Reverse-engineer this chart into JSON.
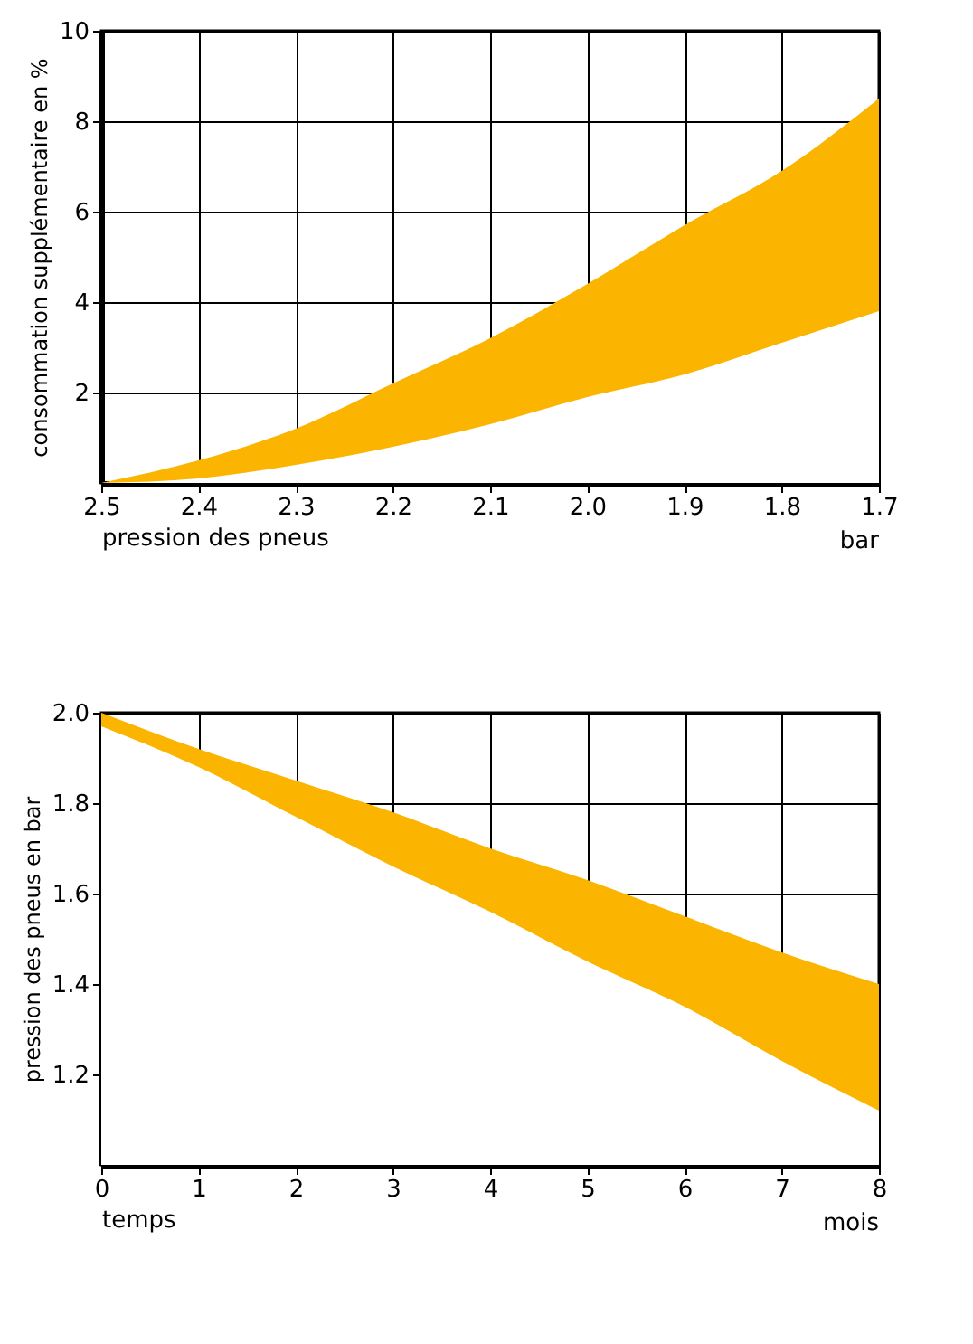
{
  "chart_data": [
    {
      "type": "area",
      "xlabel": "pression des pneus",
      "ylabel": "consommation supplémentaire en %",
      "annotations": [
        "bar"
      ],
      "x": [
        2.5,
        2.4,
        2.3,
        2.2,
        2.1,
        2.0,
        1.9,
        1.8,
        1.7
      ],
      "series": [
        {
          "color": "#fbb400",
          "values": [
            0,
            0.5,
            1.2,
            2.2,
            3.2,
            4.4,
            5.7,
            6.9,
            8.5
          ]
        },
        {
          "color": "#ffffff",
          "values": [
            0,
            0.1,
            0.4,
            0.8,
            1.3,
            1.9,
            2.4,
            3.1,
            3.8
          ]
        }
      ],
      "xlim": [
        2.5,
        1.7
      ],
      "xticks": [
        2.5,
        2.4,
        2.3,
        2.2,
        2.1,
        {
          "value": 2.0,
          "label": "2.0"
        },
        1.9,
        1.8,
        1.7
      ],
      "ylim": [
        0,
        10
      ],
      "yticks": [
        2,
        4,
        6,
        8,
        10
      ],
      "grid": true,
      "legend": false
    },
    {
      "type": "area",
      "xlabel": "temps",
      "ylabel": "pression des pneus en bar",
      "annotations": [
        "mois"
      ],
      "x": [
        0,
        1,
        2,
        3,
        4,
        5,
        6,
        7,
        8
      ],
      "series": [
        {
          "color": "#fbb400",
          "values": [
            2.0,
            1.92,
            1.85,
            1.78,
            1.7,
            1.63,
            1.55,
            1.47,
            1.4
          ]
        },
        {
          "color": "#ffffff",
          "values": [
            1.97,
            1.88,
            1.77,
            1.66,
            1.56,
            1.45,
            1.35,
            1.23,
            1.12
          ]
        }
      ],
      "xlim": [
        0,
        8
      ],
      "xticks": [
        0,
        1,
        2,
        3,
        4,
        5,
        6,
        7,
        8
      ],
      "ylim": [
        1.0,
        2.0
      ],
      "yticks": [
        1.2,
        1.4,
        1.6,
        1.8,
        {
          "value": 2.0,
          "label": "2.0"
        }
      ],
      "grid": true,
      "legend": false
    }
  ]
}
